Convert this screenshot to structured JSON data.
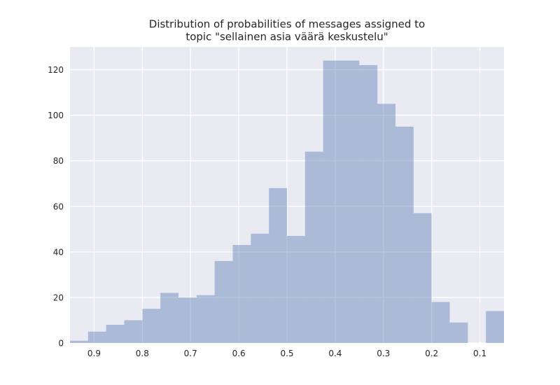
{
  "chart_data": {
    "type": "bar",
    "title_lines": [
      "Distribution of probabilities of messages assigned to",
      "topic \"sellainen asia väärä keskustelu\""
    ],
    "xlabel": "",
    "ylabel": "",
    "x_axis_inverted": true,
    "xlim": [
      0.95,
      0.05
    ],
    "ylim": [
      0,
      130
    ],
    "x_ticks": [
      0.9,
      0.8,
      0.7,
      0.6,
      0.5,
      0.4,
      0.3,
      0.2,
      0.1
    ],
    "x_tick_labels": [
      "0.9",
      "0.8",
      "0.7",
      "0.6",
      "0.5",
      "0.4",
      "0.3",
      "0.2",
      "0.1"
    ],
    "y_ticks": [
      0,
      20,
      40,
      60,
      80,
      100,
      120
    ],
    "y_tick_labels": [
      "0",
      "20",
      "40",
      "60",
      "80",
      "100",
      "120"
    ],
    "grid": true,
    "bin_edges": [
      0.95,
      0.9125,
      0.875,
      0.8375,
      0.8,
      0.7625,
      0.725,
      0.6875,
      0.65,
      0.6125,
      0.575,
      0.5375,
      0.5,
      0.4625,
      0.425,
      0.3875,
      0.35,
      0.3125,
      0.275,
      0.2375,
      0.2,
      0.1625,
      0.125,
      0.0875,
      0.05
    ],
    "counts": [
      1,
      5,
      8,
      10,
      15,
      22,
      20,
      21,
      36,
      43,
      48,
      68,
      47,
      84,
      124,
      124,
      122,
      105,
      95,
      57,
      18,
      9,
      0,
      14
    ],
    "bar_color": "#4c72b0",
    "background_color": "#eaeaf2"
  }
}
